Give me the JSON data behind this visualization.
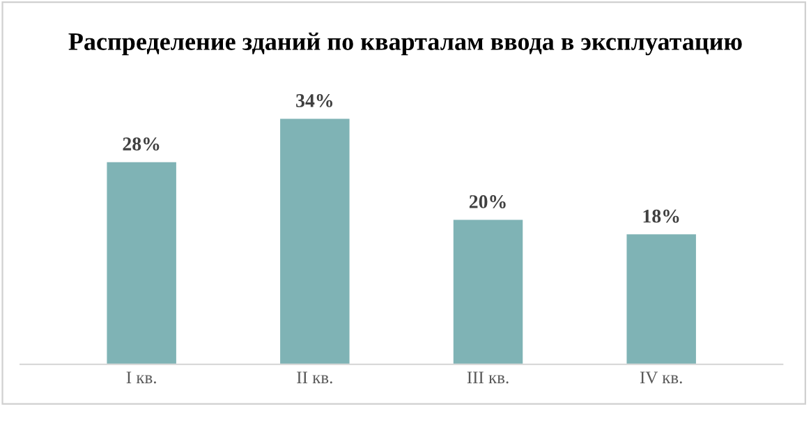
{
  "chart_data": {
    "type": "bar",
    "title": "Распределение зданий по кварталам ввода в эксплуатацию",
    "categories": [
      "I кв.",
      "II кв.",
      "III кв.",
      "IV кв."
    ],
    "values": [
      28,
      34,
      20,
      18
    ],
    "value_labels": [
      "28%",
      "34%",
      "20%",
      "18%"
    ],
    "color": "#7fb3b5",
    "grid": false,
    "legend": false
  }
}
